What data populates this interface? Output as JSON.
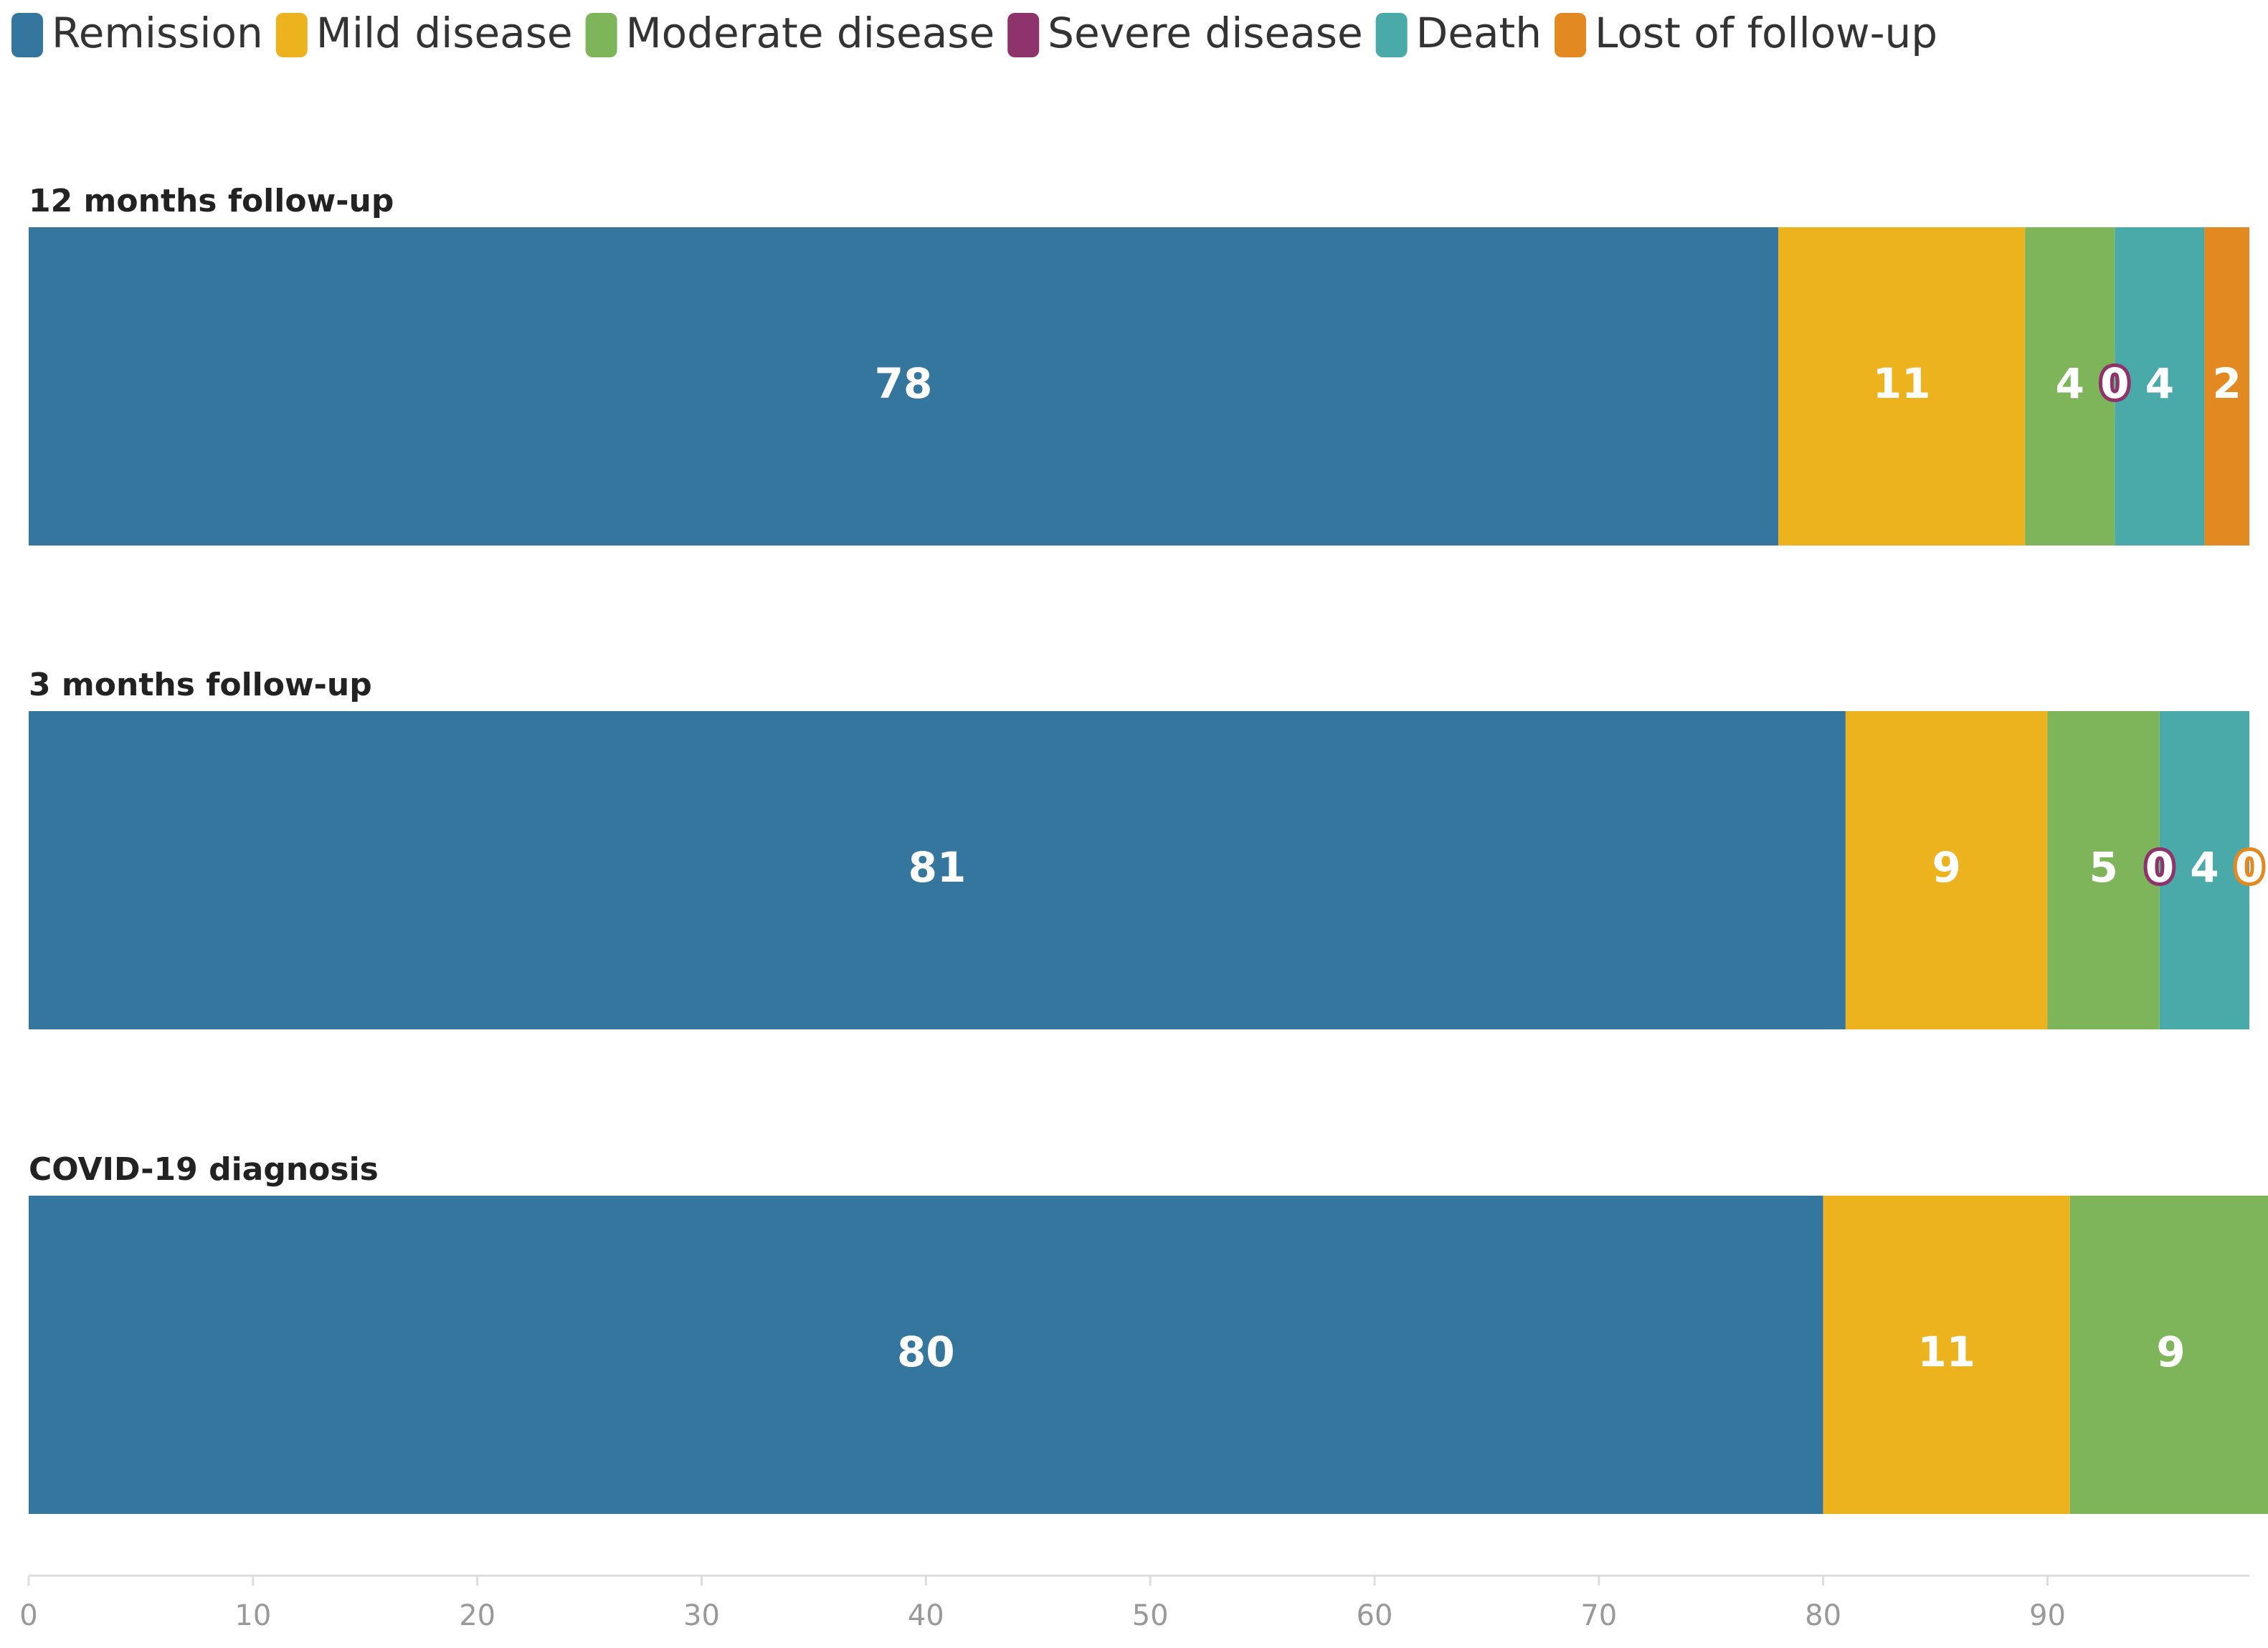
{
  "chart_data": {
    "type": "stacked-bar-horizontal",
    "categories": [
      "12 months follow-up",
      "3 months follow-up",
      "COVID-19 diagnosis"
    ],
    "series": [
      {
        "name": "Remission",
        "color": "#35769f",
        "values": [
          78,
          81,
          80
        ]
      },
      {
        "name": "Mild disease",
        "color": "#ecb31f",
        "values": [
          11,
          9,
          11
        ]
      },
      {
        "name": "Moderate disease",
        "color": "#7fb55a",
        "values": [
          4,
          5,
          9
        ]
      },
      {
        "name": "Severe disease",
        "color": "#8e336b",
        "values": [
          0,
          0,
          null
        ]
      },
      {
        "name": "Death",
        "color": "#4aa9a9",
        "values": [
          4,
          4,
          null
        ]
      },
      {
        "name": "Lost of follow-up",
        "color": "#e38922",
        "values": [
          2,
          0,
          null
        ]
      }
    ],
    "xlim": [
      0,
      99
    ],
    "xticks": [
      0,
      10,
      20,
      30,
      40,
      50,
      60,
      70,
      80,
      90
    ],
    "legend": "top-left"
  }
}
